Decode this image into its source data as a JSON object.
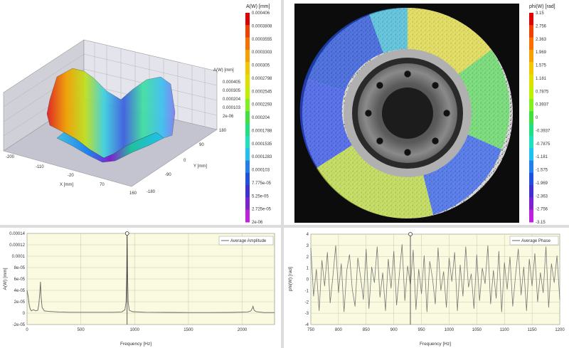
{
  "surface3d": {
    "zlabel": "A(W) [mm]",
    "zticks": [
      "0.000405",
      "0.000305",
      "0.000204",
      "0.000103",
      "2e-06"
    ],
    "xlabel": "X [mm]",
    "xticks": [
      "-200",
      "-110",
      "-20",
      "70",
      "160"
    ],
    "ylabel": "Y [mm]",
    "yticks": [
      "180",
      "90",
      "0",
      "-90",
      "-180"
    ]
  },
  "amp_colorbar": {
    "title": "A(W) [mm]",
    "ticks": [
      "0.000406",
      "0.0003808",
      "0.0003555",
      "0.0003303",
      "0.000305",
      "0.0002798",
      "0.0002545",
      "0.0002293",
      "0.000204",
      "0.0001788",
      "0.0001535",
      "0.0001283",
      "0.000103",
      "7.775e-05",
      "5.25e-05",
      "2.725e-05",
      "2e-06"
    ],
    "colors": [
      "#e00000",
      "#f04000",
      "#f87000",
      "#f8a000",
      "#f0c800",
      "#e0e000",
      "#c0f000",
      "#80f020",
      "#40e040",
      "#20e080",
      "#20e0c0",
      "#20c0f0",
      "#2080f0",
      "#2050e0",
      "#4030d0",
      "#8020d0",
      "#c020e0"
    ]
  },
  "phase_colorbar": {
    "title": "phi(W) [rad]",
    "ticks": [
      "3.15",
      "2.756",
      "2.363",
      "1.969",
      "1.575",
      "1.181",
      "0.7875",
      "0.3937",
      "0",
      "-0.3937",
      "-0.7875",
      "-1.181",
      "-1.575",
      "-1.969",
      "-2.363",
      "-2.756",
      "-3.15"
    ]
  },
  "amp_chart": {
    "legend": "Average Amplitude",
    "xlabel": "Frequency [Hz]",
    "ylabel": "A(W) [mm]",
    "xticks": [
      "0",
      "500",
      "1000",
      "1500",
      "2000"
    ],
    "yticks": [
      "0.00014",
      "0.00012",
      "0.0001",
      "8e-05",
      "6e-05",
      "4e-05",
      "2e-05",
      "0",
      "-2e-05"
    ],
    "cursor_freq": 930
  },
  "phase_chart": {
    "legend": "Average Phase",
    "xlabel": "Frequency [Hz]",
    "ylabel": "phi(W) [rad]",
    "xticks": [
      "750",
      "800",
      "850",
      "900",
      "950",
      "1000",
      "1050",
      "1100",
      "1150",
      "1200"
    ],
    "yticks": [
      "4",
      "3",
      "2",
      "1",
      "0",
      "-1",
      "-2",
      "-3",
      "-4"
    ],
    "cursor_freq": 930
  },
  "chart_data": [
    {
      "type": "line",
      "title": "",
      "xlabel": "Frequency [Hz]",
      "ylabel": "A(W) [mm]",
      "xlim": [
        0,
        2300
      ],
      "ylim": [
        -2e-05,
        0.00014
      ],
      "series": [
        {
          "name": "Average Amplitude",
          "x": [
            0,
            10,
            20,
            30,
            40,
            60,
            80,
            100,
            110,
            120,
            125,
            130,
            140,
            160,
            200,
            300,
            400,
            500,
            600,
            700,
            800,
            880,
            910,
            920,
            925,
            930,
            935,
            940,
            950,
            980,
            1100,
            1300,
            1500,
            1700,
            1900,
            2050,
            2080,
            2095,
            2100,
            2110,
            2130,
            2200,
            2300
          ],
          "y": [
            4e-05,
            3e-05,
            1.5e-05,
            7e-06,
            4e-06,
            6e-06,
            4e-06,
            5e-06,
            1.5e-05,
            4e-05,
            5.5e-05,
            3e-05,
            1e-05,
            4e-06,
            3e-06,
            2e-06,
            1.5e-06,
            1.5e-06,
            1.5e-06,
            1.5e-06,
            1.5e-06,
            2e-06,
            6e-06,
            2e-05,
            6e-05,
            0.000138,
            6e-05,
            2e-05,
            5e-06,
            2.5e-06,
            1.5e-06,
            1.2e-06,
            1e-06,
            1e-06,
            1.2e-06,
            2e-06,
            4e-06,
            9e-06,
            1.2e-05,
            5e-06,
            2.5e-06,
            1e-06,
            1e-06
          ]
        }
      ]
    },
    {
      "type": "line",
      "title": "",
      "xlabel": "Frequency [Hz]",
      "ylabel": "phi(W) [rad]",
      "xlim": [
        750,
        1200
      ],
      "ylim": [
        -4,
        4
      ],
      "series": [
        {
          "name": "Average Phase",
          "x": [
            750,
            755,
            760,
            765,
            770,
            775,
            780,
            785,
            790,
            795,
            800,
            805,
            810,
            815,
            820,
            825,
            830,
            835,
            840,
            845,
            850,
            855,
            860,
            865,
            870,
            875,
            880,
            885,
            890,
            895,
            900,
            905,
            910,
            915,
            920,
            925,
            930,
            935,
            940,
            945,
            950,
            955,
            960,
            965,
            970,
            975,
            980,
            985,
            990,
            995,
            1000,
            1005,
            1010,
            1015,
            1020,
            1025,
            1030,
            1035,
            1040,
            1045,
            1050,
            1055,
            1060,
            1065,
            1070,
            1075,
            1080,
            1085,
            1090,
            1095,
            1100,
            1105,
            1110,
            1115,
            1120,
            1125,
            1130,
            1135,
            1140,
            1145,
            1150,
            1155,
            1160,
            1165,
            1170,
            1175,
            1180,
            1185,
            1190,
            1195,
            1200
          ],
          "y": [
            2.8,
            -1.5,
            0.9,
            -2.8,
            1.7,
            -0.6,
            2.4,
            -2.1,
            0.3,
            3.0,
            -1.2,
            1.4,
            -2.9,
            0.8,
            2.2,
            -0.9,
            -2.4,
            1.9,
            0.2,
            -1.8,
            2.7,
            -2.6,
            1.1,
            -0.3,
            2.9,
            -1.6,
            0.6,
            -2.8,
            1.8,
            -0.8,
            2.5,
            -2.3,
            0.4,
            3.1,
            -1.9,
            1.2,
            -0.5,
            2.6,
            -2.7,
            0.9,
            -1.3,
            2.1,
            -2.9,
            1.6,
            0.1,
            -2.2,
            2.8,
            -1.0,
            0.7,
            -2.5,
            1.9,
            -0.2,
            2.4,
            -2.8,
            1.3,
            -1.5,
            2.9,
            -0.7,
            0.5,
            -2.6,
            2.2,
            -1.9,
            1.0,
            -0.4,
            3.0,
            -2.2,
            0.8,
            -1.7,
            2.5,
            -2.9,
            1.5,
            -0.9,
            2.0,
            -2.4,
            0.3,
            2.7,
            -1.4,
            1.1,
            -2.8,
            1.8,
            -0.6,
            2.3,
            -2.0,
            0.6,
            -1.2,
            2.9,
            -2.5,
            1.4,
            -0.3,
            2.1,
            -1.8
          ]
        }
      ]
    }
  ]
}
